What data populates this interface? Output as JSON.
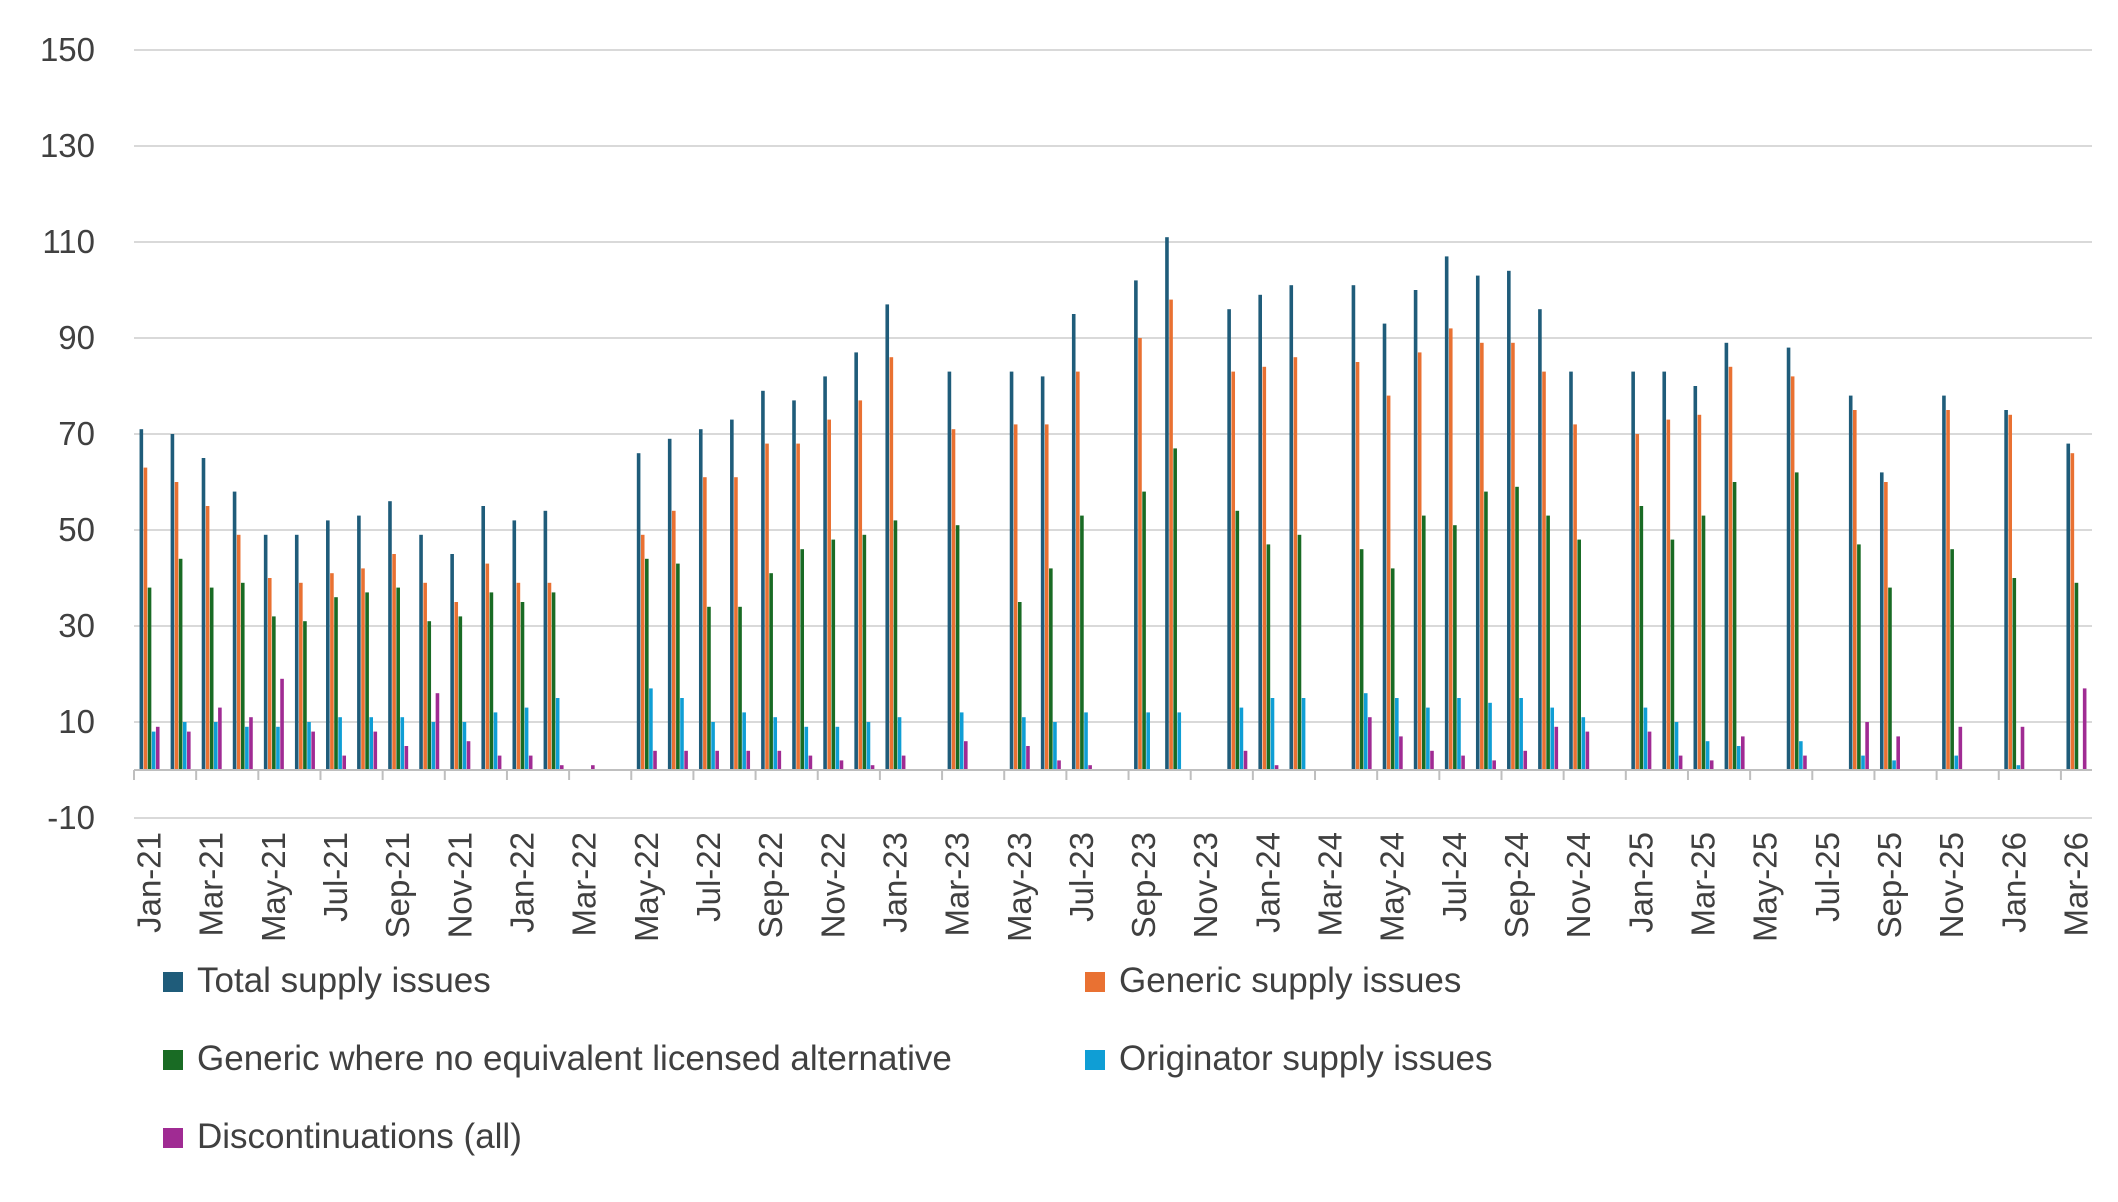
{
  "chart_data": {
    "type": "bar",
    "title": "",
    "xlabel": "",
    "ylabel": "",
    "ylim": [
      -10,
      150
    ],
    "y_ticks": [
      -10,
      10,
      30,
      50,
      70,
      90,
      110,
      130,
      150
    ],
    "grid": true,
    "legend_position": "bottom",
    "categories": [
      "Jan-21",
      "Feb-21",
      "Mar-21",
      "Apr-21",
      "May-21",
      "Jun-21",
      "Jul-21",
      "Aug-21",
      "Sep-21",
      "Oct-21",
      "Nov-21",
      "Dec-21",
      "Jan-22",
      "Feb-22",
      "Mar-22",
      "Apr-22",
      "May-22",
      "Jun-22",
      "Jul-22",
      "Aug-22",
      "Sep-22",
      "Oct-22",
      "Nov-22",
      "Dec-22",
      "Jan-23",
      "Feb-23",
      "Mar-23",
      "Apr-23",
      "May-23",
      "Jun-23",
      "Jul-23",
      "Aug-23",
      "Sep-23",
      "Oct-23",
      "Nov-23",
      "Dec-23",
      "Jan-24",
      "Feb-24",
      "Mar-24",
      "Apr-24",
      "May-24",
      "Jun-24",
      "Jul-24",
      "Aug-24",
      "Sep-24",
      "Oct-24",
      "Nov-24",
      "Dec-24",
      "Jan-25",
      "Feb-25",
      "Mar-25",
      "Apr-25",
      "May-25",
      "Jun-25",
      "Jul-25",
      "Aug-25",
      "Sep-25",
      "Oct-25",
      "Nov-25",
      "Dec-25",
      "Jan-26",
      "Feb-26",
      "Mar-26"
    ],
    "tick_labels": [
      "Jan-21",
      "Mar-21",
      "May-21",
      "Jul-21",
      "Sep-21",
      "Nov-21",
      "Jan-22",
      "Mar-22",
      "May-22",
      "Jul-22",
      "Sep-22",
      "Nov-22",
      "Jan-23",
      "Mar-23",
      "May-23",
      "Jul-23",
      "Sep-23",
      "Nov-23",
      "Jan-24",
      "Mar-24",
      "May-24",
      "Jul-24",
      "Sep-24",
      "Nov-24",
      "Jan-25",
      "Mar-25",
      "May-25",
      "Jul-25",
      "Sep-25",
      "Nov-25",
      "Jan-26",
      "Mar-26"
    ],
    "series": [
      {
        "name": "Total supply issues",
        "color": "#1F5C7A",
        "values": [
          71,
          70,
          65,
          58,
          49,
          49,
          52,
          53,
          56,
          49,
          45,
          55,
          52,
          54,
          null,
          null,
          66,
          69,
          71,
          73,
          79,
          77,
          82,
          87,
          97,
          null,
          83,
          null,
          83,
          82,
          95,
          null,
          102,
          111,
          null,
          96,
          99,
          101,
          null,
          101,
          93,
          100,
          107,
          103,
          104,
          96,
          83,
          null,
          83,
          83,
          80,
          89,
          null,
          88,
          null,
          78,
          62,
          null,
          78,
          null,
          75,
          null,
          68
        ]
      },
      {
        "name": "Generic supply issues",
        "color": "#E97132",
        "values": [
          63,
          60,
          55,
          49,
          40,
          39,
          41,
          42,
          45,
          39,
          35,
          43,
          39,
          39,
          null,
          null,
          49,
          54,
          61,
          61,
          68,
          68,
          73,
          77,
          86,
          null,
          71,
          null,
          72,
          72,
          83,
          null,
          90,
          98,
          null,
          83,
          84,
          86,
          null,
          85,
          78,
          87,
          92,
          89,
          89,
          83,
          72,
          null,
          70,
          73,
          74,
          84,
          null,
          82,
          null,
          75,
          60,
          null,
          75,
          null,
          74,
          null,
          66
        ]
      },
      {
        "name": "Generic where no equivalent licensed alternative",
        "color": "#196B24",
        "values": [
          38,
          44,
          38,
          39,
          32,
          31,
          36,
          37,
          38,
          31,
          32,
          37,
          35,
          37,
          null,
          null,
          44,
          43,
          34,
          34,
          41,
          46,
          48,
          49,
          52,
          null,
          51,
          null,
          35,
          42,
          53,
          null,
          58,
          67,
          null,
          54,
          47,
          49,
          null,
          46,
          42,
          53,
          51,
          58,
          59,
          53,
          48,
          null,
          55,
          48,
          53,
          60,
          null,
          62,
          null,
          47,
          38,
          null,
          46,
          null,
          40,
          null,
          39
        ]
      },
      {
        "name": "Originator supply issues",
        "color": "#0F9ED5",
        "values": [
          8,
          10,
          10,
          9,
          9,
          10,
          11,
          11,
          11,
          10,
          10,
          12,
          13,
          15,
          null,
          null,
          17,
          15,
          10,
          12,
          11,
          9,
          9,
          10,
          11,
          null,
          12,
          null,
          11,
          10,
          12,
          null,
          12,
          12,
          null,
          13,
          15,
          15,
          null,
          16,
          15,
          13,
          15,
          14,
          15,
          13,
          11,
          null,
          13,
          10,
          6,
          5,
          null,
          6,
          null,
          3,
          2,
          null,
          3,
          null,
          1,
          null,
          null
        ]
      },
      {
        "name": "Discontinuations (all)",
        "color": "#A02B93",
        "values": [
          9,
          8,
          13,
          11,
          19,
          8,
          3,
          8,
          5,
          16,
          6,
          3,
          3,
          1,
          1,
          null,
          4,
          4,
          4,
          4,
          4,
          3,
          2,
          1,
          3,
          null,
          6,
          null,
          5,
          2,
          1,
          null,
          null,
          null,
          null,
          4,
          1,
          null,
          null,
          11,
          7,
          4,
          3,
          2,
          4,
          9,
          8,
          null,
          8,
          3,
          2,
          7,
          null,
          3,
          null,
          10,
          7,
          null,
          9,
          null,
          9,
          null,
          17
        ]
      }
    ]
  }
}
